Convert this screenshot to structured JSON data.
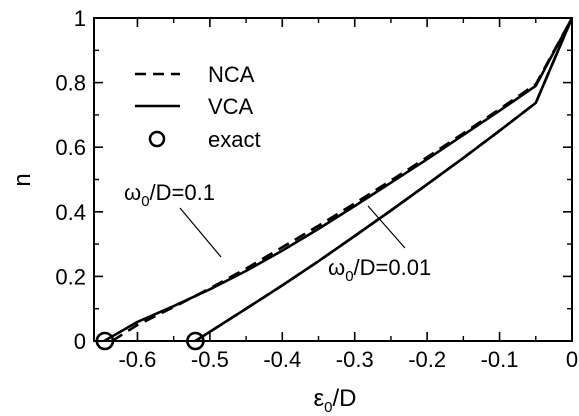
{
  "chart_data": {
    "type": "line",
    "xlabel": {
      "main": "ε",
      "sub": "0",
      "rest": "/D"
    },
    "ylabel": "n",
    "xlim": [
      -0.66,
      0.0
    ],
    "ylim": [
      0,
      1
    ],
    "x_ticks": [
      -0.6,
      -0.5,
      -0.4,
      -0.3,
      -0.2,
      -0.1,
      0
    ],
    "x_tick_labels": [
      "-0.6",
      "-0.5",
      "-0.4",
      "-0.3",
      "-0.2",
      "-0.1",
      "0"
    ],
    "y_ticks": [
      0,
      0.2,
      0.4,
      0.6,
      0.8,
      1
    ],
    "y_tick_labels": [
      "0",
      "0.2",
      "0.4",
      "0.6",
      "0.8",
      "1"
    ],
    "grid": false,
    "legend_position": "top-left",
    "legend": [
      {
        "label": "NCA",
        "style": "dashed"
      },
      {
        "label": "VCA",
        "style": "solid"
      },
      {
        "label": "exact",
        "style": "circle"
      }
    ],
    "series": [
      {
        "name": "NCA",
        "curve": "ω0/D=0.1",
        "style": "dashed",
        "points": [
          [
            -0.635,
            0.0
          ],
          [
            -0.6,
            0.05
          ],
          [
            -0.55,
            0.105
          ],
          [
            -0.5,
            0.163
          ],
          [
            -0.45,
            0.224
          ],
          [
            -0.4,
            0.29
          ],
          [
            -0.35,
            0.357
          ],
          [
            -0.3,
            0.426
          ],
          [
            -0.25,
            0.497
          ],
          [
            -0.2,
            0.569
          ],
          [
            -0.15,
            0.643
          ],
          [
            -0.1,
            0.718
          ],
          [
            -0.05,
            0.795
          ],
          [
            0.0,
            1.0
          ]
        ]
      },
      {
        "name": "VCA",
        "curve": "ω0/D=0.1",
        "style": "solid",
        "points": [
          [
            -0.646,
            0.0
          ],
          [
            -0.6,
            0.059
          ],
          [
            -0.55,
            0.108
          ],
          [
            -0.5,
            0.16
          ],
          [
            -0.45,
            0.217
          ],
          [
            -0.4,
            0.28
          ],
          [
            -0.35,
            0.347
          ],
          [
            -0.3,
            0.418
          ],
          [
            -0.25,
            0.49
          ],
          [
            -0.2,
            0.563
          ],
          [
            -0.15,
            0.638
          ],
          [
            -0.1,
            0.713
          ],
          [
            -0.05,
            0.79
          ],
          [
            0.0,
            1.0
          ]
        ]
      },
      {
        "name": "NCA",
        "curve": "ω0/D=0.01",
        "style": "dashed",
        "points": [
          [
            -0.52,
            0.0
          ],
          [
            -0.45,
            0.1
          ],
          [
            -0.4,
            0.172
          ],
          [
            -0.35,
            0.247
          ],
          [
            -0.3,
            0.325
          ],
          [
            -0.25,
            0.404
          ],
          [
            -0.2,
            0.485
          ],
          [
            -0.15,
            0.567
          ],
          [
            -0.1,
            0.651
          ],
          [
            -0.05,
            0.737
          ],
          [
            0.0,
            1.0
          ]
        ]
      },
      {
        "name": "VCA",
        "curve": "ω0/D=0.01",
        "style": "solid",
        "points": [
          [
            -0.52,
            0.0
          ],
          [
            -0.45,
            0.1
          ],
          [
            -0.4,
            0.172
          ],
          [
            -0.35,
            0.247
          ],
          [
            -0.3,
            0.325
          ],
          [
            -0.25,
            0.404
          ],
          [
            -0.2,
            0.485
          ],
          [
            -0.15,
            0.567
          ],
          [
            -0.1,
            0.651
          ],
          [
            -0.05,
            0.737
          ],
          [
            0.0,
            1.0
          ]
        ]
      }
    ],
    "exact_points": [
      [
        -0.645,
        0.0
      ],
      [
        -0.52,
        0.0
      ]
    ],
    "annotations": [
      {
        "main": "ω",
        "sub": "0",
        "rest": "/D=0.1",
        "points_to": [
          -0.475,
          0.2
        ]
      },
      {
        "main": "ω",
        "sub": "0",
        "rest": "/D=0.01",
        "points_to": [
          -0.32,
          0.4
        ]
      }
    ]
  }
}
